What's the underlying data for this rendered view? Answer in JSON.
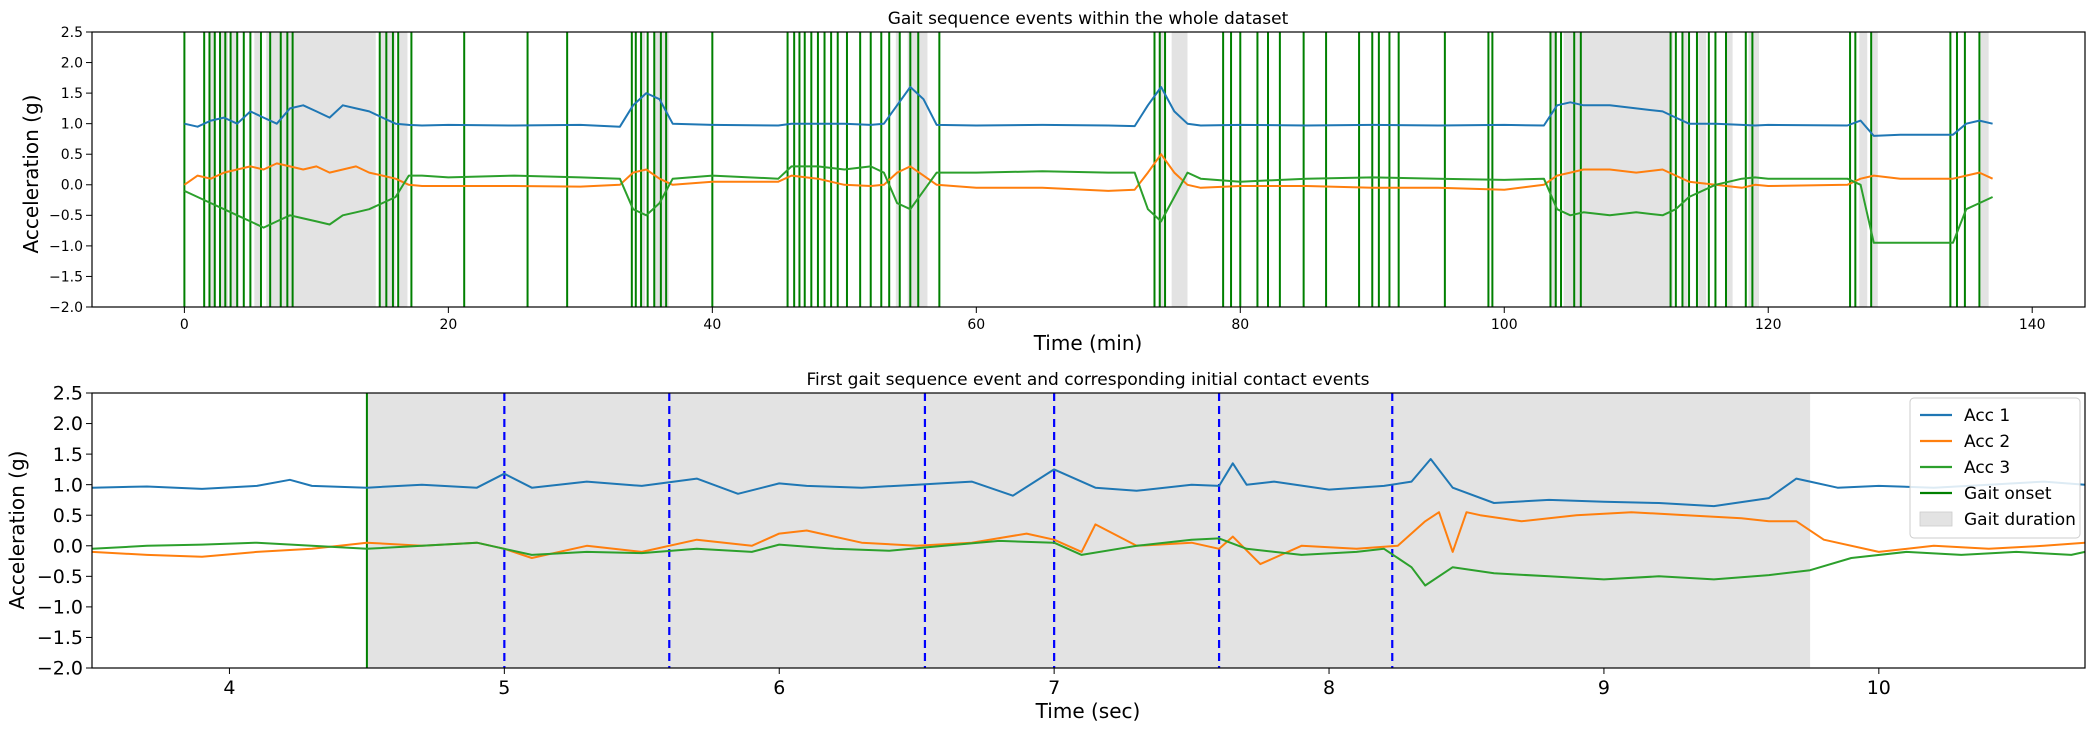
{
  "chart_data": [
    {
      "type": "line",
      "title": "Gait sequence events within the whole dataset",
      "xlabel": "Time (min)",
      "ylabel": "Acceleration (g)",
      "xlim": [
        -7,
        144
      ],
      "ylim": [
        -2.0,
        2.5
      ],
      "xticks": [
        0,
        20,
        40,
        60,
        80,
        100,
        120,
        140
      ],
      "yticks": [
        -2.0,
        -1.5,
        -1.0,
        -0.5,
        0.0,
        0.5,
        1.0,
        1.5,
        2.0,
        2.5
      ],
      "grid": false,
      "legend": null,
      "series": [
        {
          "name": "Acc 1",
          "color": "#1f77b4",
          "x": [
            0,
            1,
            2,
            3,
            4,
            5,
            6,
            7,
            8,
            9,
            10,
            11,
            12,
            13,
            14,
            15,
            16,
            17,
            18,
            20,
            25,
            30,
            33,
            34,
            35,
            36,
            37,
            40,
            45,
            46,
            48,
            50,
            52,
            53,
            54,
            55,
            56,
            57,
            60,
            65,
            70,
            72,
            73,
            74,
            75,
            76,
            77,
            80,
            85,
            90,
            95,
            100,
            103,
            104,
            105,
            106,
            108,
            110,
            112,
            113,
            114,
            116,
            118,
            119,
            120,
            126,
            127,
            128,
            130,
            134,
            135,
            136,
            137
          ],
          "y": [
            1.0,
            0.95,
            1.05,
            1.1,
            1.0,
            1.2,
            1.1,
            1.0,
            1.25,
            1.3,
            1.2,
            1.1,
            1.3,
            1.25,
            1.2,
            1.1,
            1.0,
            0.98,
            0.97,
            0.98,
            0.97,
            0.98,
            0.95,
            1.3,
            1.5,
            1.4,
            1.0,
            0.98,
            0.97,
            1.0,
            1.0,
            1.0,
            0.98,
            1.0,
            1.3,
            1.6,
            1.4,
            0.98,
            0.97,
            0.98,
            0.97,
            0.96,
            1.3,
            1.6,
            1.2,
            1.0,
            0.97,
            0.98,
            0.97,
            0.98,
            0.97,
            0.98,
            0.97,
            1.3,
            1.35,
            1.3,
            1.3,
            1.25,
            1.2,
            1.1,
            1.0,
            1.0,
            0.98,
            0.97,
            0.98,
            0.97,
            1.05,
            0.8,
            0.82,
            0.82,
            1.0,
            1.05,
            1.0
          ]
        },
        {
          "name": "Acc 2",
          "color": "#ff7f0e",
          "x": [
            0,
            1,
            2,
            3,
            4,
            5,
            6,
            7,
            8,
            9,
            10,
            11,
            12,
            13,
            14,
            15,
            16,
            17,
            18,
            20,
            25,
            30,
            33,
            34,
            35,
            36,
            37,
            40,
            45,
            46,
            48,
            50,
            52,
            53,
            54,
            55,
            56,
            57,
            60,
            65,
            70,
            72,
            73,
            74,
            75,
            76,
            77,
            80,
            85,
            90,
            95,
            100,
            103,
            104,
            105,
            106,
            108,
            110,
            112,
            113,
            114,
            116,
            118,
            119,
            120,
            126,
            127,
            128,
            130,
            134,
            135,
            136,
            137
          ],
          "y": [
            0.0,
            0.15,
            0.1,
            0.2,
            0.25,
            0.3,
            0.25,
            0.35,
            0.3,
            0.25,
            0.3,
            0.2,
            0.25,
            0.3,
            0.2,
            0.15,
            0.1,
            0.0,
            -0.02,
            -0.02,
            -0.02,
            -0.03,
            0.0,
            0.2,
            0.25,
            0.1,
            0.0,
            0.05,
            0.05,
            0.15,
            0.1,
            0.0,
            -0.02,
            0.0,
            0.2,
            0.3,
            0.15,
            0.0,
            -0.05,
            -0.05,
            -0.1,
            -0.08,
            0.2,
            0.5,
            0.2,
            0.0,
            -0.05,
            -0.02,
            -0.02,
            -0.05,
            -0.05,
            -0.08,
            0.0,
            0.15,
            0.2,
            0.25,
            0.25,
            0.2,
            0.25,
            0.15,
            0.05,
            0.0,
            -0.05,
            0.0,
            -0.02,
            0.0,
            0.1,
            0.15,
            0.1,
            0.1,
            0.15,
            0.2,
            0.1
          ]
        },
        {
          "name": "Acc 3",
          "color": "#2ca02c",
          "x": [
            0,
            1,
            2,
            3,
            4,
            5,
            6,
            7,
            8,
            9,
            10,
            11,
            12,
            13,
            14,
            15,
            16,
            17,
            18,
            20,
            25,
            30,
            33,
            34,
            35,
            36,
            37,
            40,
            45,
            46,
            48,
            50,
            52,
            53,
            54,
            55,
            56,
            57,
            60,
            65,
            70,
            72,
            73,
            74,
            75,
            76,
            77,
            80,
            85,
            90,
            95,
            100,
            103,
            104,
            105,
            106,
            108,
            110,
            112,
            113,
            114,
            116,
            118,
            119,
            120,
            126,
            127,
            128,
            130,
            134,
            135,
            136,
            137
          ],
          "y": [
            -0.1,
            -0.2,
            -0.3,
            -0.4,
            -0.5,
            -0.6,
            -0.7,
            -0.6,
            -0.5,
            -0.55,
            -0.6,
            -0.65,
            -0.5,
            -0.45,
            -0.4,
            -0.3,
            -0.2,
            0.15,
            0.15,
            0.12,
            0.15,
            0.12,
            0.1,
            -0.4,
            -0.5,
            -0.3,
            0.1,
            0.15,
            0.1,
            0.3,
            0.3,
            0.25,
            0.3,
            0.2,
            -0.3,
            -0.4,
            -0.1,
            0.2,
            0.2,
            0.22,
            0.2,
            0.2,
            -0.4,
            -0.6,
            -0.2,
            0.2,
            0.1,
            0.05,
            0.1,
            0.12,
            0.1,
            0.08,
            0.1,
            -0.4,
            -0.5,
            -0.45,
            -0.5,
            -0.45,
            -0.5,
            -0.4,
            -0.2,
            0.0,
            0.1,
            0.12,
            0.1,
            0.1,
            0.0,
            -0.95,
            -0.95,
            -0.95,
            -0.4,
            -0.3,
            -0.2
          ]
        }
      ],
      "gait_onsets_min": [
        0.0,
        1.5,
        1.9,
        2.3,
        2.7,
        3.1,
        3.5,
        4.0,
        4.5,
        5.0,
        5.8,
        6.5,
        7.3,
        7.8,
        8.2,
        14.8,
        15.3,
        15.8,
        16.2,
        17.2,
        21.2,
        26.0,
        29.0,
        33.9,
        34.2,
        34.6,
        35.1,
        35.6,
        36.1,
        36.5,
        40.0,
        45.7,
        46.2,
        46.6,
        47.0,
        47.5,
        48.0,
        48.5,
        49.0,
        49.5,
        50.2,
        51.2,
        52.0,
        52.8,
        53.4,
        54.2,
        55.0,
        55.6,
        57.2,
        73.5,
        73.9,
        74.3,
        78.7,
        79.3,
        80.0,
        81.3,
        82.1,
        83.0,
        84.8,
        86.5,
        89.0,
        90.0,
        90.5,
        91.3,
        92.0,
        95.5,
        98.8,
        99.1,
        103.5,
        103.9,
        104.3,
        105.3,
        105.8,
        112.6,
        113.0,
        113.5,
        114.0,
        114.6,
        115.5,
        116.0,
        116.8,
        118.3,
        118.8,
        126.2,
        126.6,
        127.8,
        133.8,
        134.3,
        134.9,
        136.0
      ],
      "gait_durations_min": [
        [
          1.9,
          2.4
        ],
        [
          2.7,
          3.3
        ],
        [
          3.5,
          4.1
        ],
        [
          5.3,
          5.7
        ],
        [
          6.2,
          14.5
        ],
        [
          14.8,
          16.0
        ],
        [
          16.3,
          16.9
        ],
        [
          34.5,
          34.9
        ],
        [
          35.6,
          36.7
        ],
        [
          53.9,
          54.2
        ],
        [
          54.8,
          56.3
        ],
        [
          73.8,
          74.2
        ],
        [
          74.8,
          76.0
        ],
        [
          103.5,
          104.0
        ],
        [
          104.5,
          112.8
        ],
        [
          113.5,
          113.9
        ],
        [
          114.7,
          115.3
        ],
        [
          116.8,
          117.3
        ],
        [
          118.5,
          119.3
        ],
        [
          126.9,
          127.5
        ],
        [
          127.8,
          128.3
        ],
        [
          136.1,
          136.7
        ]
      ]
    },
    {
      "type": "line",
      "title": "First gait sequence event and corresponding initial contact events",
      "xlabel": "Time (sec)",
      "ylabel": "Acceleration (g)",
      "xlim": [
        3.5,
        10.75
      ],
      "ylim": [
        -2.0,
        2.5
      ],
      "xticks": [
        4,
        5,
        6,
        7,
        8,
        9,
        10
      ],
      "yticks": [
        -2.0,
        -1.5,
        -1.0,
        -0.5,
        0.0,
        0.5,
        1.0,
        1.5,
        2.0,
        2.5
      ],
      "grid": false,
      "legend": "top-right",
      "series": [
        {
          "name": "Acc 1",
          "color": "#1f77b4",
          "x": [
            3.5,
            3.7,
            3.9,
            4.1,
            4.22,
            4.3,
            4.5,
            4.7,
            4.9,
            5.0,
            5.1,
            5.3,
            5.5,
            5.7,
            5.85,
            6.0,
            6.1,
            6.3,
            6.5,
            6.7,
            6.85,
            7.0,
            7.15,
            7.3,
            7.5,
            7.6,
            7.65,
            7.7,
            7.8,
            8.0,
            8.2,
            8.3,
            8.37,
            8.45,
            8.6,
            8.8,
            9.0,
            9.2,
            9.4,
            9.6,
            9.7,
            9.75,
            9.85,
            10.0,
            10.2,
            10.4,
            10.6,
            10.75
          ],
          "y": [
            0.95,
            0.97,
            0.93,
            0.98,
            1.08,
            0.98,
            0.95,
            1.0,
            0.95,
            1.18,
            0.95,
            1.05,
            0.98,
            1.1,
            0.85,
            1.02,
            0.98,
            0.95,
            1.0,
            1.05,
            0.82,
            1.25,
            0.95,
            0.9,
            1.0,
            0.98,
            1.35,
            1.0,
            1.05,
            0.92,
            0.98,
            1.05,
            1.42,
            0.95,
            0.7,
            0.75,
            0.72,
            0.7,
            0.65,
            0.78,
            1.1,
            1.05,
            0.95,
            0.98,
            0.95,
            1.0,
            1.05,
            1.0
          ]
        },
        {
          "name": "Acc 2",
          "color": "#ff7f0e",
          "x": [
            3.5,
            3.7,
            3.9,
            4.1,
            4.3,
            4.5,
            4.7,
            4.9,
            5.0,
            5.1,
            5.3,
            5.5,
            5.7,
            5.9,
            6.0,
            6.1,
            6.3,
            6.5,
            6.7,
            6.9,
            7.0,
            7.1,
            7.15,
            7.3,
            7.5,
            7.6,
            7.65,
            7.75,
            7.9,
            8.1,
            8.25,
            8.35,
            8.4,
            8.45,
            8.5,
            8.55,
            8.7,
            8.9,
            9.1,
            9.3,
            9.5,
            9.6,
            9.7,
            9.8,
            10.0,
            10.2,
            10.4,
            10.6,
            10.75
          ],
          "y": [
            -0.1,
            -0.15,
            -0.18,
            -0.1,
            -0.05,
            0.05,
            0.0,
            0.05,
            -0.05,
            -0.2,
            0.0,
            -0.1,
            0.1,
            0.0,
            0.2,
            0.25,
            0.05,
            0.0,
            0.05,
            0.2,
            0.1,
            -0.1,
            0.35,
            0.0,
            0.05,
            -0.05,
            0.15,
            -0.3,
            0.0,
            -0.05,
            0.0,
            0.4,
            0.55,
            -0.1,
            0.55,
            0.5,
            0.4,
            0.5,
            0.55,
            0.5,
            0.45,
            0.4,
            0.4,
            0.1,
            -0.1,
            0.0,
            -0.05,
            0.0,
            0.05
          ]
        },
        {
          "name": "Acc 3",
          "color": "#2ca02c",
          "x": [
            3.5,
            3.7,
            3.9,
            4.1,
            4.3,
            4.5,
            4.7,
            4.9,
            5.0,
            5.1,
            5.3,
            5.5,
            5.7,
            5.9,
            6.0,
            6.2,
            6.4,
            6.6,
            6.8,
            7.0,
            7.1,
            7.3,
            7.5,
            7.6,
            7.7,
            7.9,
            8.1,
            8.2,
            8.3,
            8.35,
            8.45,
            8.6,
            8.8,
            9.0,
            9.2,
            9.4,
            9.6,
            9.75,
            9.9,
            10.1,
            10.3,
            10.5,
            10.7,
            10.75
          ],
          "y": [
            -0.05,
            0.0,
            0.02,
            0.05,
            0.0,
            -0.05,
            0.0,
            0.05,
            -0.05,
            -0.15,
            -0.1,
            -0.12,
            -0.05,
            -0.1,
            0.02,
            -0.05,
            -0.08,
            0.0,
            0.08,
            0.05,
            -0.15,
            0.0,
            0.1,
            0.12,
            -0.05,
            -0.15,
            -0.1,
            -0.05,
            -0.35,
            -0.65,
            -0.35,
            -0.45,
            -0.5,
            -0.55,
            -0.5,
            -0.55,
            -0.48,
            -0.4,
            -0.2,
            -0.1,
            -0.15,
            -0.1,
            -0.15,
            -0.1
          ]
        }
      ],
      "gait_onset_sec": 4.5,
      "gait_duration_sec": [
        4.5,
        9.75
      ],
      "initial_contacts_sec": [
        5.0,
        5.6,
        6.53,
        7.0,
        7.6,
        8.23
      ],
      "legend_items": [
        {
          "label": "Acc 1",
          "kind": "line",
          "color": "#1f77b4"
        },
        {
          "label": "Acc 2",
          "kind": "line",
          "color": "#ff7f0e"
        },
        {
          "label": "Acc 3",
          "kind": "line",
          "color": "#2ca02c"
        },
        {
          "label": "Gait onset",
          "kind": "line",
          "color": "#008000"
        },
        {
          "label": "Gait duration",
          "kind": "patch",
          "color": "#e3e3e3"
        }
      ]
    }
  ]
}
